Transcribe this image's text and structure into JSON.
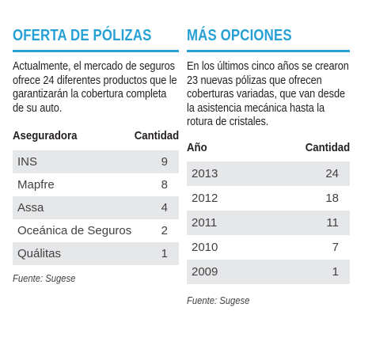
{
  "left": {
    "title": "OFERTA DE PÓLIZAS",
    "intro": "Actualmente, el mercado de seguros ofrece 24 diferentes productos que le garantizarán la cobertura completa de su auto.",
    "col_name": "Aseguradora",
    "col_qty": "Cantidad",
    "rows": [
      {
        "name": "INS",
        "qty": "9"
      },
      {
        "name": "Mapfre",
        "qty": "8"
      },
      {
        "name": "Assa",
        "qty": "4"
      },
      {
        "name": "Oceánica de Seguros",
        "qty": "2"
      },
      {
        "name": "Quálitas",
        "qty": "1"
      }
    ],
    "source": "Fuente: Sugese"
  },
  "right": {
    "title": "MÁS OPCIONES",
    "intro": "En los últimos cinco años se crearon 23 nuevas pólizas que ofrecen coberturas variadas, que van desde la asistencia mecánica hasta la rotura de cristales.",
    "col_name": "Año",
    "col_qty": "Cantidad",
    "rows": [
      {
        "name": "2013",
        "qty": "24"
      },
      {
        "name": "2012",
        "qty": "18"
      },
      {
        "name": "2011",
        "qty": "11"
      },
      {
        "name": "2010",
        "qty": "7"
      },
      {
        "name": "2009",
        "qty": "1"
      }
    ],
    "source": "Fuente: Sugese"
  },
  "colors": {
    "accent": "#27a0d6",
    "row_shade": "#e6e7e8",
    "text": "#231f20"
  }
}
